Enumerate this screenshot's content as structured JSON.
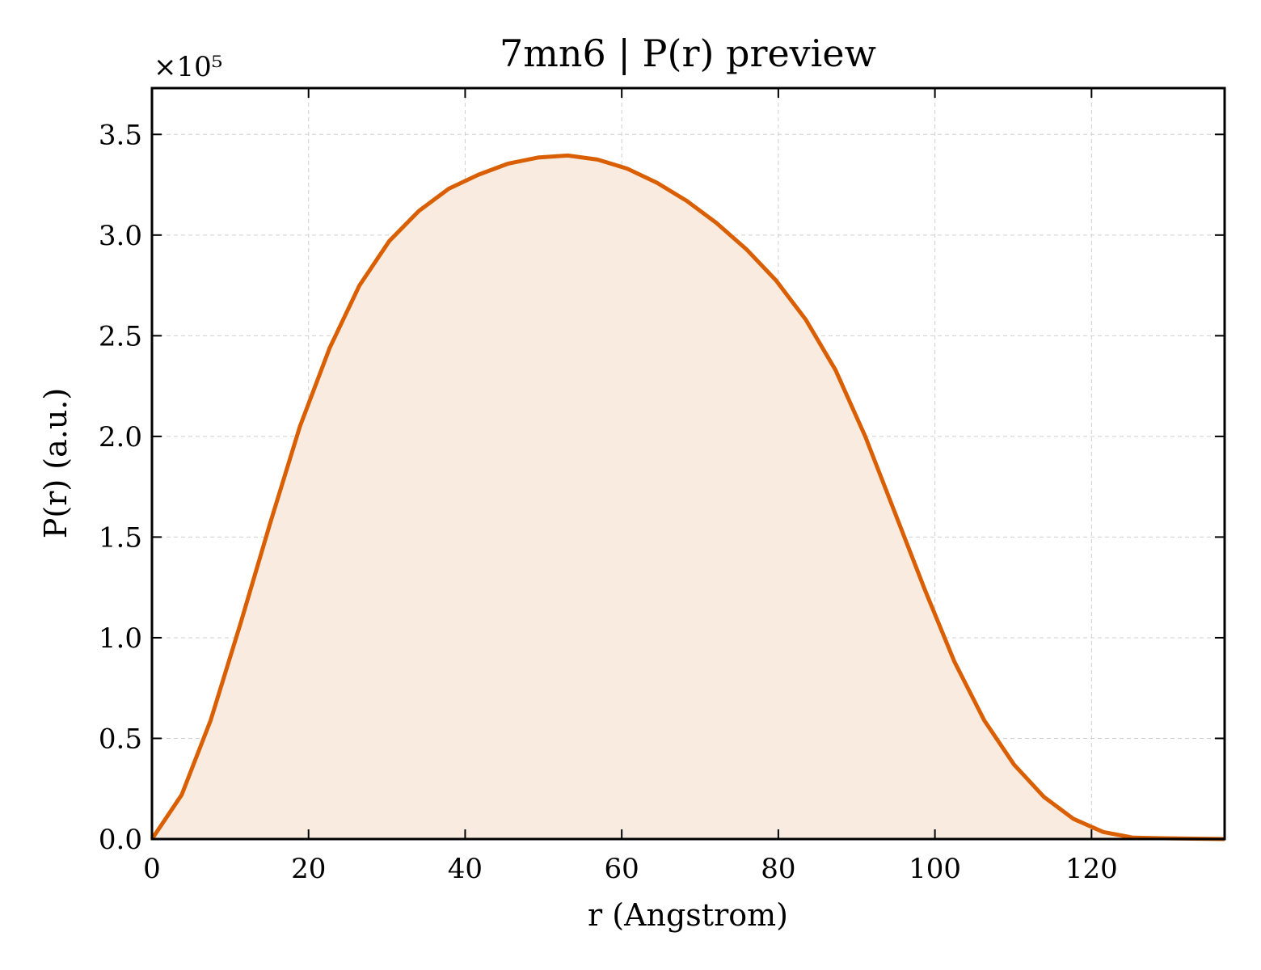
{
  "chart_data": {
    "type": "area",
    "title": "7mn6 | P(r) preview",
    "xlabel": "r (Angstrom)",
    "ylabel": "P(r) (a.u.)",
    "y_scale_label": "×10⁵",
    "xlim": [
      0,
      137
    ],
    "ylim": [
      0,
      3.73
    ],
    "y_multiplier": 100000,
    "xticks": [
      0,
      20,
      40,
      60,
      80,
      100,
      120
    ],
    "yticks": [
      0.0,
      0.5,
      1.0,
      1.5,
      2.0,
      2.5,
      3.0,
      3.5
    ],
    "xtick_labels": [
      "0",
      "20",
      "40",
      "60",
      "80",
      "100",
      "120"
    ],
    "ytick_labels": [
      "0.0",
      "0.5",
      "1.0",
      "1.5",
      "2.0",
      "2.5",
      "3.0",
      "3.5"
    ],
    "grid": true,
    "colors": {
      "line": "#d95f02",
      "fill": "#f9ebe0"
    },
    "series": [
      {
        "x": [
          0,
          3.8,
          7.5,
          11.3,
          15.1,
          18.9,
          22.7,
          26.5,
          30.3,
          34.1,
          37.9,
          41.7,
          45.5,
          49.3,
          53.1,
          56.9,
          60.7,
          64.5,
          68.3,
          72.1,
          75.9,
          79.7,
          83.5,
          87.3,
          91.1,
          94.9,
          98.7,
          102.5,
          106.3,
          110.1,
          113.9,
          117.7,
          121.5,
          125.3,
          129.1,
          132.9,
          137.0
        ],
        "y": [
          0.0,
          0.22,
          0.59,
          1.07,
          1.57,
          2.05,
          2.44,
          2.75,
          2.97,
          3.12,
          3.23,
          3.3,
          3.355,
          3.385,
          3.395,
          3.375,
          3.33,
          3.26,
          3.17,
          3.06,
          2.93,
          2.775,
          2.58,
          2.33,
          2.0,
          1.62,
          1.24,
          0.88,
          0.59,
          0.37,
          0.21,
          0.1,
          0.035,
          0.007,
          0.004,
          0.002,
          0.0
        ]
      }
    ]
  }
}
